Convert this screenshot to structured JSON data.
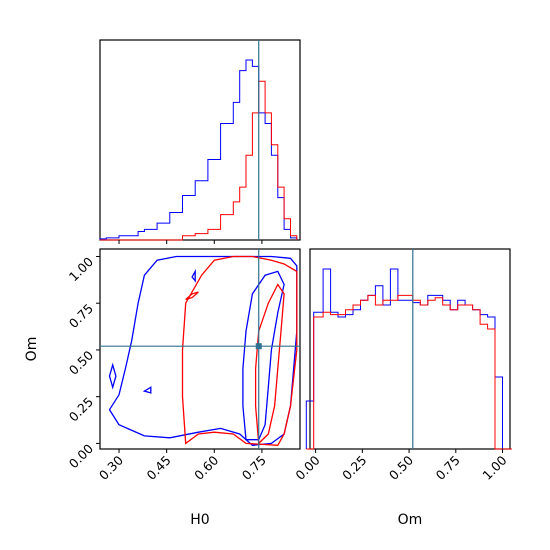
{
  "chart_data": {
    "type": "corner",
    "parameters": [
      "H0",
      "Om"
    ],
    "truth": {
      "H0": 0.74,
      "Om": 0.52
    },
    "colors": {
      "series_a": "#0000ff",
      "series_b": "#ff0000",
      "truth": "#2e7190"
    },
    "h0_axis": {
      "label": "H0",
      "range": [
        0.24,
        0.87
      ],
      "ticks": [
        "0.30",
        "0.45",
        "0.60",
        "0.75"
      ],
      "tick_values": [
        0.3,
        0.45,
        0.6,
        0.75
      ]
    },
    "om_axis": {
      "label": "Om",
      "range": [
        -0.03,
        1.04
      ],
      "ticks": [
        "0.00",
        "0.25",
        "0.50",
        "0.75",
        "1.00"
      ],
      "tick_values": [
        0.0,
        0.25,
        0.5,
        0.75,
        1.0
      ]
    },
    "h0_histogram": {
      "bin_edges": [
        0.24,
        0.26,
        0.28,
        0.3,
        0.32,
        0.34,
        0.36,
        0.38,
        0.4,
        0.42,
        0.44,
        0.46,
        0.48,
        0.5,
        0.52,
        0.54,
        0.56,
        0.58,
        0.6,
        0.62,
        0.64,
        0.66,
        0.68,
        0.7,
        0.72,
        0.74,
        0.76,
        0.78,
        0.8,
        0.82,
        0.84,
        0.86
      ],
      "series_a": [
        0.5,
        1,
        1,
        2,
        2,
        2,
        4,
        5,
        5,
        8,
        8,
        13,
        13,
        21,
        21,
        28,
        28,
        38,
        38,
        55,
        55,
        65,
        80,
        85,
        82,
        60,
        55,
        40,
        20,
        5,
        1
      ],
      "series_b": [
        0,
        0,
        0,
        0,
        0,
        0,
        0,
        0,
        0,
        0,
        0,
        0,
        0,
        2,
        2,
        3,
        3,
        5,
        5,
        12,
        12,
        18,
        25,
        40,
        60,
        75,
        60,
        45,
        25,
        10,
        2
      ]
    },
    "om_histogram": {
      "bin_edges": [
        -0.05,
        -0.01,
        0.04,
        0.08,
        0.12,
        0.16,
        0.2,
        0.24,
        0.28,
        0.32,
        0.36,
        0.4,
        0.44,
        0.48,
        0.52,
        0.56,
        0.6,
        0.64,
        0.68,
        0.72,
        0.76,
        0.8,
        0.84,
        0.88,
        0.92,
        0.96,
        1.0,
        1.05
      ],
      "series_a": [
        20,
        57,
        75,
        57,
        55,
        56,
        58,
        62,
        64,
        68,
        60,
        75,
        62,
        62,
        61,
        60,
        64,
        64,
        62,
        58,
        62,
        60,
        58,
        56,
        55,
        30,
        0
      ],
      "series_b": [
        0,
        55,
        57,
        56,
        56,
        58,
        60,
        62,
        64,
        60,
        62,
        62,
        64,
        64,
        62,
        60,
        62,
        63,
        60,
        58,
        60,
        60,
        58,
        52,
        50,
        0,
        0
      ]
    },
    "contours_2d": {
      "series_a": [
        [
          [
            0.32,
            0.4
          ],
          [
            0.34,
            0.55
          ],
          [
            0.36,
            0.75
          ],
          [
            0.38,
            0.9
          ],
          [
            0.42,
            0.98
          ],
          [
            0.48,
            1.0
          ],
          [
            0.58,
            1.0
          ],
          [
            0.66,
            1.0
          ],
          [
            0.72,
            1.0
          ],
          [
            0.78,
            1.0
          ],
          [
            0.84,
            0.99
          ],
          [
            0.86,
            0.95
          ],
          [
            0.86,
            0.6
          ],
          [
            0.84,
            0.2
          ],
          [
            0.82,
            0.05
          ],
          [
            0.78,
            0.0
          ],
          [
            0.72,
            -0.01
          ],
          [
            0.68,
            0.05
          ],
          [
            0.62,
            0.08
          ],
          [
            0.55,
            0.06
          ],
          [
            0.46,
            0.03
          ],
          [
            0.38,
            0.04
          ],
          [
            0.3,
            0.1
          ],
          [
            0.27,
            0.18
          ],
          [
            0.3,
            0.26
          ],
          [
            0.32,
            0.4
          ]
        ],
        [
          [
            0.7,
            0.02
          ],
          [
            0.69,
            0.2
          ],
          [
            0.69,
            0.4
          ],
          [
            0.7,
            0.6
          ],
          [
            0.72,
            0.8
          ],
          [
            0.76,
            0.9
          ],
          [
            0.8,
            0.92
          ],
          [
            0.82,
            0.85
          ],
          [
            0.8,
            0.7
          ],
          [
            0.78,
            0.5
          ],
          [
            0.77,
            0.3
          ],
          [
            0.76,
            0.1
          ],
          [
            0.74,
            0.02
          ],
          [
            0.7,
            0.02
          ]
        ],
        [
          [
            0.27,
            0.36
          ],
          [
            0.28,
            0.3
          ],
          [
            0.29,
            0.36
          ],
          [
            0.28,
            0.42
          ],
          [
            0.27,
            0.36
          ]
        ],
        [
          [
            0.38,
            0.28
          ],
          [
            0.4,
            0.27
          ],
          [
            0.4,
            0.3
          ],
          [
            0.38,
            0.28
          ]
        ],
        [
          [
            0.53,
            0.89
          ],
          [
            0.54,
            0.87
          ],
          [
            0.54,
            0.92
          ],
          [
            0.53,
            0.89
          ]
        ]
      ],
      "series_b": [
        [
          [
            0.51,
            0.0
          ],
          [
            0.5,
            0.25
          ],
          [
            0.5,
            0.5
          ],
          [
            0.51,
            0.75
          ],
          [
            0.56,
            0.9
          ],
          [
            0.6,
            0.98
          ],
          [
            0.66,
            1.0
          ],
          [
            0.72,
            1.0
          ],
          [
            0.78,
            0.98
          ],
          [
            0.82,
            0.96
          ],
          [
            0.86,
            0.92
          ],
          [
            0.86,
            0.5
          ],
          [
            0.84,
            0.2
          ],
          [
            0.82,
            0.05
          ],
          [
            0.8,
            -0.01
          ],
          [
            0.7,
            0.0
          ],
          [
            0.66,
            0.05
          ],
          [
            0.6,
            0.06
          ],
          [
            0.55,
            0.05
          ],
          [
            0.51,
            0.0
          ]
        ],
        [
          [
            0.74,
            0.0
          ],
          [
            0.73,
            0.2
          ],
          [
            0.73,
            0.4
          ],
          [
            0.74,
            0.6
          ],
          [
            0.77,
            0.75
          ],
          [
            0.8,
            0.85
          ],
          [
            0.82,
            0.8
          ],
          [
            0.81,
            0.6
          ],
          [
            0.8,
            0.4
          ],
          [
            0.79,
            0.2
          ],
          [
            0.77,
            0.05
          ],
          [
            0.74,
            0.0
          ]
        ],
        [
          [
            0.51,
            0.77
          ],
          [
            0.53,
            0.8
          ],
          [
            0.55,
            0.81
          ],
          [
            0.53,
            0.78
          ],
          [
            0.51,
            0.77
          ]
        ]
      ]
    }
  }
}
